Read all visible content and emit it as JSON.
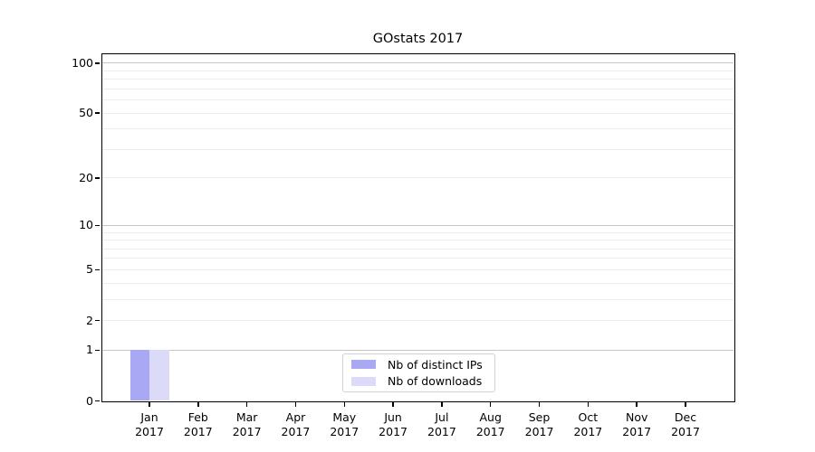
{
  "chart_data": {
    "type": "bar",
    "title": "GOstats 2017",
    "xlabel": "",
    "ylabel": "",
    "yscale": "log1p",
    "ylim": [
      0,
      113
    ],
    "y_ticks": [
      0,
      1,
      2,
      5,
      10,
      20,
      50,
      100
    ],
    "x_tick_labels": [
      [
        "Jan",
        "2017"
      ],
      [
        "Feb",
        "2017"
      ],
      [
        "Mar",
        "2017"
      ],
      [
        "Apr",
        "2017"
      ],
      [
        "May",
        "2017"
      ],
      [
        "Jun",
        "2017"
      ],
      [
        "Jul",
        "2017"
      ],
      [
        "Aug",
        "2017"
      ],
      [
        "Sep",
        "2017"
      ],
      [
        "Oct",
        "2017"
      ],
      [
        "Nov",
        "2017"
      ],
      [
        "Dec",
        "2017"
      ]
    ],
    "series": [
      {
        "name": "Nb of distinct IPs",
        "color": "#a8a8f5",
        "values": [
          1,
          0,
          0,
          0,
          0,
          0,
          0,
          0,
          0,
          0,
          0,
          0
        ]
      },
      {
        "name": "Nb of downloads",
        "color": "#dbdbf9",
        "values": [
          1,
          0,
          0,
          0,
          0,
          0,
          0,
          0,
          0,
          0,
          0,
          0
        ]
      }
    ],
    "grid": {
      "major_values": [
        1,
        10,
        100
      ],
      "minor_values": [
        2,
        3,
        4,
        5,
        6,
        7,
        8,
        9,
        20,
        30,
        40,
        50,
        60,
        70,
        80,
        90
      ],
      "major_color": "#c6c6c6",
      "minor_color": "#ededed"
    },
    "legend": {
      "position": "lower center"
    },
    "axis_color": "#000000",
    "background_color": "#ffffff"
  }
}
